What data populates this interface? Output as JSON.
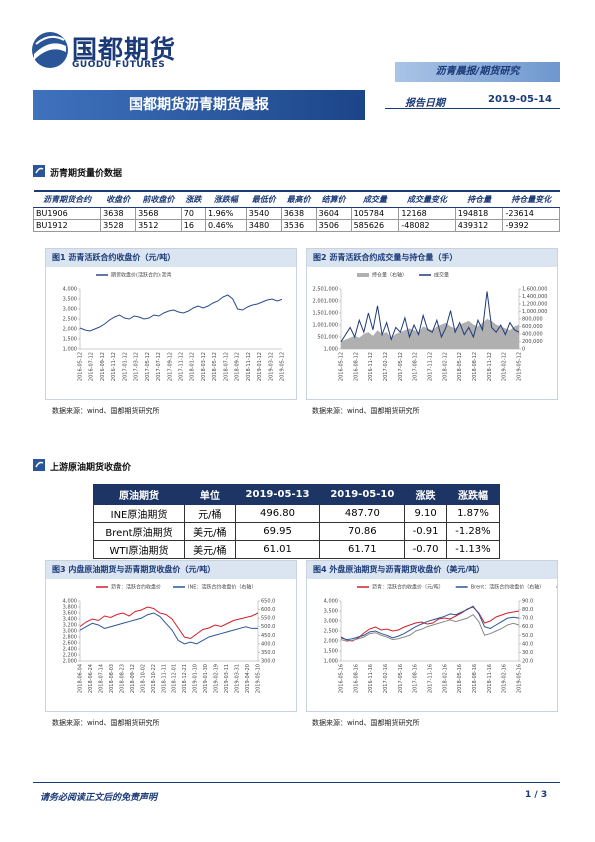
{
  "header": {
    "logo_cn": "国都期货",
    "logo_en": "GUODU FUTURES",
    "tag": "沥青晨报/期货研究",
    "title": "国都期货沥青期货晨报",
    "date_label": "报告日期",
    "date": "2019-05-14"
  },
  "section1": {
    "title": "沥青期货量价数据",
    "table": {
      "columns": [
        "沥青期货合约",
        "收盘价",
        "前收盘价",
        "涨跌",
        "涨跌幅",
        "最低价",
        "最高价",
        "结算价",
        "成交量",
        "成交量变化",
        "持仓量",
        "持仓量变化"
      ],
      "rows": [
        [
          "BU1906",
          "3638",
          "3568",
          "70",
          "1.96%",
          "3540",
          "3638",
          "3604",
          "105784",
          "12168",
          "194818",
          "-23614"
        ],
        [
          "BU1912",
          "3528",
          "3512",
          "16",
          "0.46%",
          "3480",
          "3536",
          "3506",
          "585626",
          "-48082",
          "439312",
          "-9392"
        ]
      ]
    }
  },
  "section2": {
    "title": "上游原油期货收盘价",
    "table": {
      "columns": [
        "原油期货",
        "单位",
        "2019-05-13",
        "2019-05-10",
        "涨跌",
        "涨跌幅"
      ],
      "rows": [
        [
          "INE原油期货",
          "元/桶",
          "496.80",
          "487.70",
          "9.10",
          "1.87%"
        ],
        [
          "Brent原油期货",
          "美元/桶",
          "69.95",
          "70.86",
          "-0.91",
          "-1.28%"
        ],
        [
          "WTI原油期货",
          "美元/桶",
          "61.01",
          "61.71",
          "-0.70",
          "-1.13%"
        ]
      ]
    }
  },
  "figures": [
    {
      "title": "图1 沥青活跃合约收盘价（元/吨）",
      "source": "数据来源：wind、国都期货研究所",
      "ylim": [
        1000,
        4000
      ],
      "yticks": [
        {
          "value": 1000,
          "label": "1,000"
        },
        {
          "value": 1500,
          "label": "1,500"
        },
        {
          "value": 2000,
          "label": "2,000"
        },
        {
          "value": 2500,
          "label": "2,500"
        },
        {
          "value": 3000,
          "label": "3,000"
        },
        {
          "value": 3500,
          "label": "3,500"
        },
        {
          "value": 4000,
          "label": "4,000"
        }
      ],
      "xticks": [
        "2016-05-12",
        "2016-07-12",
        "2016-09-12",
        "2016-11-12",
        "2017-01-12",
        "2017-03-12",
        "2017-05-12",
        "2017-07-12",
        "2017-09-12",
        "2017-11-12",
        "2018-01-12",
        "2018-03-12",
        "2018-05-12",
        "2018-07-12",
        "2018-09-12",
        "2018-11-12",
        "2019-01-12",
        "2019-03-12",
        "2019-05-12"
      ],
      "series": [
        {
          "name": "期货收盘价(活跃合约):沥青",
          "color": "#2a4b8d",
          "values": [
            2050,
            1950,
            1900,
            2000,
            2100,
            2250,
            2450,
            2600,
            2700,
            2550,
            2500,
            2650,
            2600,
            2500,
            2550,
            2700,
            2650,
            2800,
            2900,
            2950,
            2850,
            2800,
            2900,
            3050,
            3150,
            3050,
            3150,
            3300,
            3400,
            3600,
            3700,
            3500,
            3000,
            2950,
            3100,
            3200,
            3250,
            3350,
            3450,
            3500,
            3400,
            3480
          ]
        }
      ]
    },
    {
      "title": "图2 沥青活跃合约成交量与持仓量（手）",
      "source": "数据来源：wind、国都期货研究所",
      "ylim": [
        1000,
        2501000
      ],
      "yticks": [
        {
          "value": 1000,
          "label": "1,000"
        },
        {
          "value": 501000,
          "label": "501,000"
        },
        {
          "value": 1001000,
          "label": "1,001,000"
        },
        {
          "value": 1501000,
          "label": "1,501,000"
        },
        {
          "value": 2001000,
          "label": "2,001,000"
        },
        {
          "value": 2501000,
          "label": "2,501,000"
        }
      ],
      "y2lim": [
        0,
        1600000
      ],
      "y2ticks": [
        0,
        {
          "value": 200000,
          "label": "200,000"
        },
        {
          "value": 400000,
          "label": "400,000"
        },
        {
          "value": 600000,
          "label": "600,000"
        },
        {
          "value": 800000,
          "label": "800,000"
        },
        {
          "value": 1000000,
          "label": "1,000,000"
        },
        {
          "value": 1200000,
          "label": "1,200,000"
        },
        {
          "value": 1400000,
          "label": "1,400,000"
        },
        {
          "value": 1600000,
          "label": "1,600,000"
        }
      ],
      "xticks": [
        "2016-05-12",
        "2016-08-12",
        "2016-11-12",
        "2017-02-12",
        "2017-05-12",
        "2017-08-12",
        "2017-11-12",
        "2018-02-12",
        "2018-05-12",
        "2018-08-12",
        "2018-11-12",
        "2019-02-12",
        "2019-05-12"
      ],
      "series": [
        {
          "name": "持仓量（右轴）",
          "color": "#b0b0b0",
          "axis": "y2",
          "kind": "area",
          "values": [
            200000,
            250000,
            300000,
            350000,
            300000,
            400000,
            450000,
            350000,
            500000,
            400000,
            450000,
            300000,
            400000,
            450000,
            500000,
            550000,
            500000,
            450000,
            600000,
            550000,
            500000,
            600000,
            650000,
            700000,
            600000,
            550000,
            650000,
            700000,
            750000,
            650000,
            600000,
            700000,
            800000,
            750000,
            650000,
            600000,
            550000,
            500000,
            600000,
            650000
          ]
        },
        {
          "name": "成交量",
          "color": "#1f3a7a",
          "values": [
            300000,
            600000,
            900000,
            500000,
            1200000,
            700000,
            1500000,
            800000,
            1800000,
            600000,
            1100000,
            400000,
            900000,
            700000,
            1300000,
            500000,
            1000000,
            600000,
            1400000,
            800000,
            700000,
            1200000,
            500000,
            900000,
            1600000,
            700000,
            1100000,
            600000,
            900000,
            500000,
            1200000,
            800000,
            2400000,
            900000,
            700000,
            1000000,
            600000,
            1100000,
            800000,
            700000
          ]
        }
      ]
    },
    {
      "title": "图3 内盘原油期货与沥青期货收盘价（元/吨）",
      "source": "数据来源：wind、国都期货研究所",
      "ylim": [
        2000,
        4000
      ],
      "yticks": [
        {
          "value": 2000,
          "label": "2,000"
        },
        {
          "value": 2200,
          "label": "2,200"
        },
        {
          "value": 2400,
          "label": "2,400"
        },
        {
          "value": 2600,
          "label": "2,600"
        },
        {
          "value": 2800,
          "label": "2,800"
        },
        {
          "value": 3000,
          "label": "3,000"
        },
        {
          "value": 3200,
          "label": "3,200"
        },
        {
          "value": 3400,
          "label": "3,400"
        },
        {
          "value": 3600,
          "label": "3,600"
        },
        {
          "value": 3800,
          "label": "3,800"
        },
        {
          "value": 4000,
          "label": "4,000"
        }
      ],
      "y2lim": [
        300,
        650
      ],
      "y2ticks": [
        {
          "value": 300,
          "label": "300.0"
        },
        {
          "value": 350,
          "label": "350.0"
        },
        {
          "value": 400,
          "label": "400.0"
        },
        {
          "value": 450,
          "label": "450.0"
        },
        {
          "value": 500,
          "label": "500.0"
        },
        {
          "value": 550,
          "label": "550.0"
        },
        {
          "value": 600,
          "label": "600.0"
        },
        {
          "value": 650,
          "label": "650.0"
        }
      ],
      "xticks": [
        "2018-06-04",
        "2018-06-24",
        "2018-07-14",
        "2018-08-03",
        "2018-08-23",
        "2018-09-12",
        "2018-10-02",
        "2018-10-22",
        "2018-11-11",
        "2018-12-01",
        "2018-12-21",
        "2019-01-10",
        "2019-01-30",
        "2019-02-19",
        "2019-03-11",
        "2019-03-31",
        "2019-04-20",
        "2019-05-10"
      ],
      "series": [
        {
          "name": "沥青：活跃合约收盘价",
          "color": "#d0202a",
          "values": [
            3150,
            3300,
            3400,
            3350,
            3500,
            3450,
            3550,
            3600,
            3500,
            3650,
            3700,
            3800,
            3750,
            3600,
            3550,
            3400,
            3100,
            2800,
            2750,
            2900,
            3050,
            3100,
            3200,
            3150,
            3250,
            3350,
            3400,
            3450,
            3500,
            3600
          ]
        },
        {
          "name": "INE：活跃合约收盘价（右轴）",
          "color": "#2a5699",
          "axis": "y2",
          "values": [
            480,
            500,
            520,
            510,
            490,
            500,
            510,
            520,
            530,
            540,
            550,
            570,
            580,
            560,
            520,
            480,
            420,
            400,
            410,
            400,
            420,
            440,
            450,
            460,
            470,
            480,
            490,
            500,
            490,
            490
          ]
        }
      ]
    },
    {
      "title": "图4 外盘原油期货与沥青期货收盘价（美元/吨）",
      "source": "数据来源：wind、国都期货研究所",
      "ylim": [
        1000,
        4000
      ],
      "yticks": [
        {
          "value": 1000,
          "label": "1,000"
        },
        {
          "value": 1500,
          "label": "1,500"
        },
        {
          "value": 2000,
          "label": "2,000"
        },
        {
          "value": 2500,
          "label": "2,500"
        },
        {
          "value": 3000,
          "label": "3,000"
        },
        {
          "value": 3500,
          "label": "3,500"
        },
        {
          "value": 4000,
          "label": "4,000"
        }
      ],
      "y2lim": [
        20,
        90
      ],
      "y2ticks": [
        {
          "value": 20,
          "label": "20.0"
        },
        {
          "value": 30,
          "label": "30.0"
        },
        {
          "value": 40,
          "label": "40.0"
        },
        {
          "value": 50,
          "label": "50.0"
        },
        {
          "value": 60,
          "label": "60.0"
        },
        {
          "value": 70,
          "label": "70.0"
        },
        {
          "value": 80,
          "label": "80.0"
        },
        {
          "value": 90,
          "label": "90.0"
        }
      ],
      "xticks": [
        "2016-05-16",
        "2016-08-16",
        "2016-11-16",
        "2017-02-16",
        "2017-05-16",
        "2017-08-16",
        "2017-11-16",
        "2018-02-16",
        "2018-05-16",
        "2018-08-16",
        "2018-11-16",
        "2019-02-16",
        "2019-05-16"
      ],
      "series": [
        {
          "name": "沥青：活跃合约收盘价（元/吨）",
          "color": "#d0202a",
          "values": [
            2200,
            2050,
            2000,
            2150,
            2400,
            2600,
            2700,
            2550,
            2600,
            2500,
            2550,
            2700,
            2800,
            2900,
            2950,
            2850,
            2900,
            3100,
            3150,
            3100,
            3250,
            3400,
            3600,
            3700,
            3400,
            2900,
            3000,
            3200,
            3300,
            3400,
            3450,
            3500
          ]
        },
        {
          "name": "Brent：活跃合约收盘价（右轴）",
          "color": "#2a5699",
          "axis": "y2",
          "values": [
            47,
            45,
            46,
            48,
            50,
            54,
            55,
            52,
            50,
            47,
            49,
            52,
            56,
            60,
            63,
            66,
            68,
            70,
            72,
            75,
            74,
            77,
            80,
            84,
            75,
            60,
            58,
            62,
            66,
            70,
            71,
            70
          ]
        },
        {
          "name": "WTI：活跃合约收盘价（右轴）",
          "color": "#888888",
          "axis": "y2",
          "values": [
            45,
            43,
            44,
            46,
            48,
            52,
            53,
            50,
            48,
            45,
            46,
            48,
            50,
            55,
            57,
            60,
            62,
            64,
            66,
            68,
            66,
            68,
            70,
            74,
            66,
            50,
            52,
            55,
            58,
            62,
            64,
            62
          ]
        }
      ]
    }
  ],
  "footer": {
    "disclaimer": "请务必阅读正文后的免责声明",
    "page": "1 / 3"
  }
}
